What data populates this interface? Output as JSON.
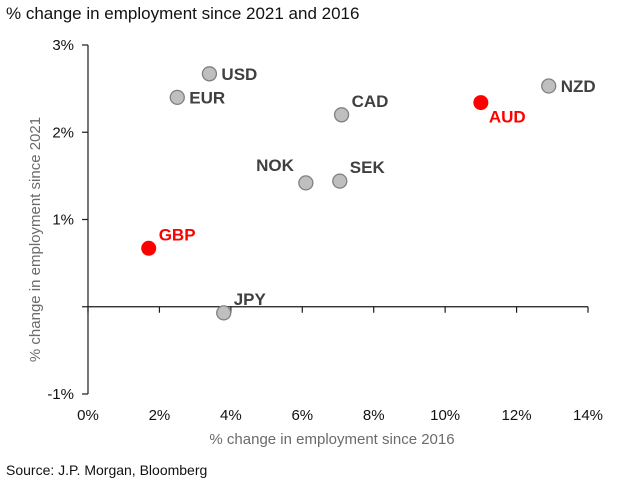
{
  "title": "% change in employment since 2021 and 2016",
  "source": "Source: J.P. Morgan, Bloomberg",
  "chart_data": {
    "type": "scatter",
    "title": "% change in employment since 2021 and 2016",
    "xlabel": "% change in employment since 2016",
    "ylabel": "% change in employment since 2021",
    "xlim": [
      0,
      14
    ],
    "ylim": [
      -1,
      3
    ],
    "xticks": [
      0,
      2,
      4,
      6,
      8,
      10,
      12,
      14
    ],
    "xtick_labels": [
      "0%",
      "2%",
      "4%",
      "6%",
      "8%",
      "10%",
      "12%",
      "14%"
    ],
    "yticks": [
      -1,
      0,
      1,
      2,
      3
    ],
    "ytick_labels": [
      "-1%",
      "",
      "1%",
      "2%",
      "3%"
    ],
    "grid": false,
    "colors": {
      "highlight": "#ff0000",
      "default_fill": "#bfbfbf",
      "default_stroke": "#808080",
      "label": "#404040"
    },
    "points": [
      {
        "label": "USD",
        "x": 3.4,
        "y": 2.67,
        "highlight": false,
        "label_pos": "right"
      },
      {
        "label": "EUR",
        "x": 2.5,
        "y": 2.4,
        "highlight": false,
        "label_pos": "right"
      },
      {
        "label": "CAD",
        "x": 7.1,
        "y": 2.2,
        "highlight": false,
        "label_pos": "upper-right"
      },
      {
        "label": "NZD",
        "x": 12.9,
        "y": 2.53,
        "highlight": false,
        "label_pos": "right"
      },
      {
        "label": "AUD",
        "x": 11.0,
        "y": 2.34,
        "highlight": true,
        "label_pos": "lower-right"
      },
      {
        "label": "NOK",
        "x": 6.1,
        "y": 1.42,
        "highlight": false,
        "label_pos": "upper-left"
      },
      {
        "label": "SEK",
        "x": 7.05,
        "y": 1.44,
        "highlight": false,
        "label_pos": "upper-right"
      },
      {
        "label": "GBP",
        "x": 1.7,
        "y": 0.67,
        "highlight": true,
        "label_pos": "upper-right"
      },
      {
        "label": "JPY",
        "x": 3.8,
        "y": -0.07,
        "highlight": false,
        "label_pos": "upper-right"
      }
    ]
  }
}
